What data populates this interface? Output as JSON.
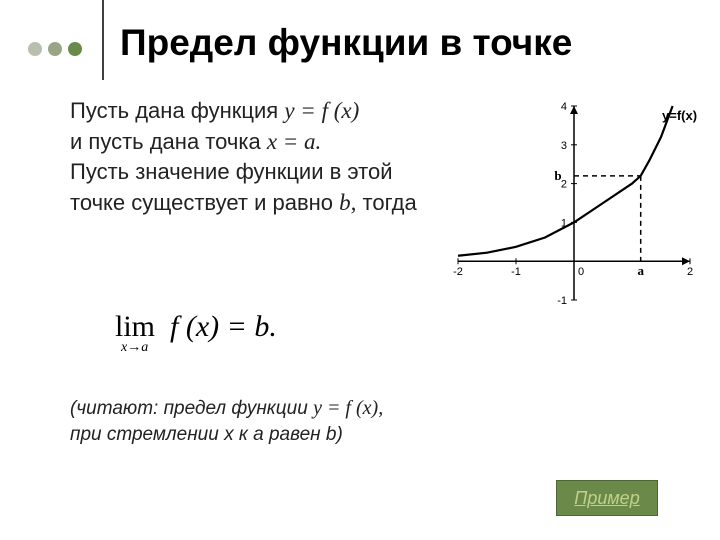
{
  "dots": {
    "colors": [
      "#b8bfae",
      "#9aa587",
      "#6b8a4a"
    ]
  },
  "title": "Предел функции в точке",
  "text": {
    "line1": "Пусть дана функция",
    "func1": "y = f (x)",
    "line2": "и пусть дана точка",
    "point": "x = a.",
    "line3a": "Пусть значение функции в этой точке существует и равно",
    "bvar": "b,",
    "line3b": "тогда"
  },
  "formula": {
    "lim": "lim",
    "sub": "x→a",
    "body": "f (x) = b."
  },
  "reading": {
    "line1a": "(читают: предел функции",
    "func": "y = f (x),",
    "line2": " при стремлении x к a равен b)"
  },
  "button": "Пример",
  "chart": {
    "type": "line",
    "background_color": "#ffffff",
    "axis_color": "#000000",
    "curve_color": "#000000",
    "dash_color": "#000000",
    "xlim": [
      -2,
      2
    ],
    "ylim": [
      -1,
      4
    ],
    "xticks": [
      -2,
      -1,
      0,
      2
    ],
    "yticks": [
      -1,
      1,
      2,
      3,
      4
    ],
    "a_x": 1.15,
    "b_y": 2.2,
    "curve_label": "y=f(x)",
    "a_label": "a",
    "b_label": "b",
    "curve_points": [
      [
        -2.0,
        0.14
      ],
      [
        -1.5,
        0.22
      ],
      [
        -1.0,
        0.37
      ],
      [
        -0.5,
        0.61
      ],
      [
        0.0,
        1.0
      ],
      [
        0.5,
        1.5
      ],
      [
        1.0,
        2.0
      ],
      [
        1.15,
        2.2
      ],
      [
        1.3,
        2.6
      ],
      [
        1.5,
        3.2
      ],
      [
        1.7,
        4.0
      ]
    ],
    "tick_fontsize": 11,
    "label_fontsize": 13
  }
}
